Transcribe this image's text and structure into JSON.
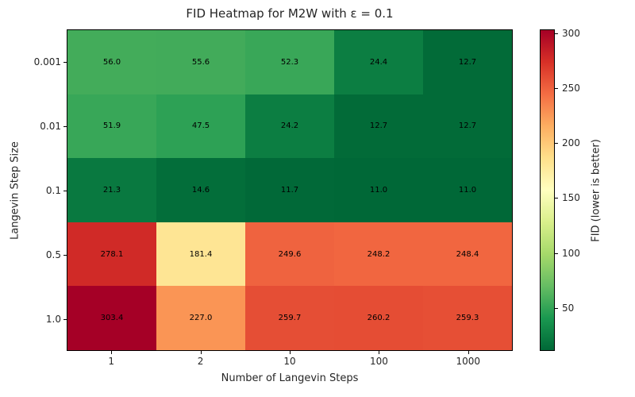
{
  "figure": {
    "background": "#ffffff"
  },
  "chart_data": {
    "type": "heatmap",
    "title": "FID Heatmap for M2W with ε = 0.1",
    "xlabel": "Number of Langevin Steps",
    "ylabel": "Langevin Step Size",
    "x_ticks": [
      "1",
      "2",
      "10",
      "100",
      "1000"
    ],
    "y_ticks": [
      "0.001",
      "0.01",
      "0.1",
      "0.5",
      "1.0"
    ],
    "values": [
      [
        56.0,
        55.6,
        52.3,
        24.4,
        12.7
      ],
      [
        51.9,
        47.5,
        24.2,
        12.7,
        12.7
      ],
      [
        21.3,
        14.6,
        11.7,
        11.0,
        11.0
      ],
      [
        278.1,
        181.4,
        249.6,
        248.2,
        248.4
      ],
      [
        303.4,
        227.0,
        259.7,
        260.2,
        259.3
      ]
    ],
    "value_decimals": 1,
    "annotation_color": "#000000",
    "colormap": {
      "name": "RdYlGn_r",
      "vmin": 11.0,
      "vmax": 303.4,
      "anchors_red_to_green": [
        "#a50026",
        "#d73027",
        "#f46d43",
        "#fdae61",
        "#fee08b",
        "#ffffbf",
        "#d9ef8b",
        "#a6d96a",
        "#66bd63",
        "#1a9850",
        "#006837"
      ]
    },
    "colorbar": {
      "label": "FID (lower is better)",
      "ticks": [
        300,
        250,
        200,
        150,
        100,
        50
      ]
    },
    "grid": false,
    "legend": "none"
  }
}
